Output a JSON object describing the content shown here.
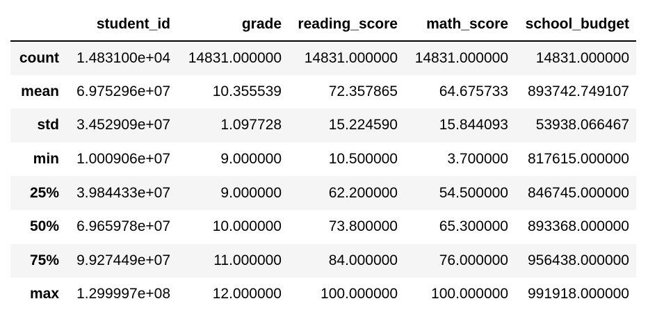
{
  "table": {
    "columns": [
      "",
      "student_id",
      "grade",
      "reading_score",
      "math_score",
      "school_budget"
    ],
    "rows": [
      {
        "label": "count",
        "values": [
          "1.483100e+04",
          "14831.000000",
          "14831.000000",
          "14831.000000",
          "14831.000000"
        ]
      },
      {
        "label": "mean",
        "values": [
          "6.975296e+07",
          "10.355539",
          "72.357865",
          "64.675733",
          "893742.749107"
        ]
      },
      {
        "label": "std",
        "values": [
          "3.452909e+07",
          "1.097728",
          "15.224590",
          "15.844093",
          "53938.066467"
        ]
      },
      {
        "label": "min",
        "values": [
          "1.000906e+07",
          "9.000000",
          "10.500000",
          "3.700000",
          "817615.000000"
        ]
      },
      {
        "label": "25%",
        "values": [
          "3.984433e+07",
          "9.000000",
          "62.200000",
          "54.500000",
          "846745.000000"
        ]
      },
      {
        "label": "50%",
        "values": [
          "6.965978e+07",
          "10.000000",
          "73.800000",
          "65.300000",
          "893368.000000"
        ]
      },
      {
        "label": "75%",
        "values": [
          "9.927449e+07",
          "11.000000",
          "84.000000",
          "76.000000",
          "956438.000000"
        ]
      },
      {
        "label": "max",
        "values": [
          "1.299997e+08",
          "12.000000",
          "100.000000",
          "100.000000",
          "991918.000000"
        ]
      }
    ]
  }
}
